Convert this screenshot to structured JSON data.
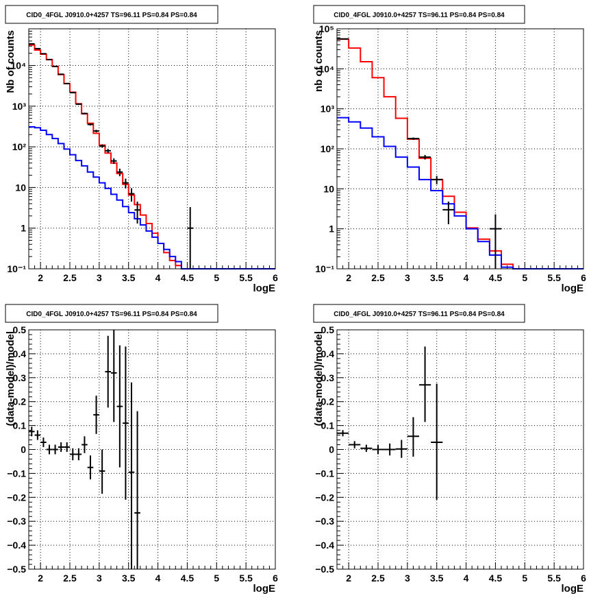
{
  "chart_data": [
    {
      "type": "line",
      "title": "CID0_4FGL J0910.0+4257 TS=96.11 PS=0.84 PS=0.84",
      "xlabel": "logE",
      "ylabel": "Nb of counts",
      "xlim": [
        1.8,
        6.0
      ],
      "ylim": [
        0.1,
        80000
      ],
      "yscale": "log",
      "grid": true,
      "x_ticks": [
        "2",
        "2.5",
        "3",
        "3.5",
        "4",
        "4.5",
        "5",
        "5.5",
        "6"
      ],
      "y_ticks": [
        "10⁻¹",
        "1",
        "10",
        "10²",
        "10³",
        "10⁴"
      ],
      "bin_edges": [
        1.8,
        1.9,
        2.0,
        2.1,
        2.2,
        2.3,
        2.4,
        2.5,
        2.6,
        2.7,
        2.8,
        2.9,
        3.0,
        3.1,
        3.2,
        3.3,
        3.4,
        3.5,
        3.6,
        3.7,
        3.8,
        3.9,
        4.0,
        4.1,
        4.2,
        4.3,
        4.4,
        4.5,
        4.6,
        4.7,
        4.8,
        4.9,
        5.0,
        5.1,
        5.2,
        5.3,
        5.4,
        5.5,
        5.6,
        5.7,
        5.8,
        5.9,
        6.0
      ],
      "series": [
        {
          "color": "#ff0000",
          "values": [
            32000,
            24000,
            19000,
            14000,
            9500,
            6000,
            3600,
            2200,
            1150,
            650,
            380,
            215,
            110,
            70,
            40,
            22,
            12,
            6.5,
            3.8,
            2.1,
            1.3,
            0.75,
            0.42,
            0.25,
            0.16,
            0.12,
            0.1,
            0.1,
            0.1,
            0.1,
            0.1,
            0.1,
            0.1,
            0.1,
            0.1,
            0.1,
            0.1,
            0.1,
            0.1,
            0.1,
            0.1,
            0.1
          ]
        },
        {
          "color": "#0000ff",
          "values": [
            310,
            295,
            255,
            200,
            160,
            120,
            88,
            64,
            46,
            34,
            24,
            18,
            13,
            9.5,
            6.8,
            4.9,
            3.4,
            2.4,
            1.7,
            1.2,
            0.85,
            0.6,
            0.42,
            0.3,
            0.2,
            0.15,
            0.1,
            0.1,
            0.1,
            0.1,
            0.1,
            0.1,
            0.1,
            0.1,
            0.1,
            0.1,
            0.1,
            0.1,
            0.1,
            0.1,
            0.1,
            0.1
          ]
        }
      ],
      "points": [
        {
          "x": 1.85,
          "y": 34000,
          "xerr": 0.05,
          "ylo": 33500,
          "yhi": 34500
        },
        {
          "x": 1.95,
          "y": 26000,
          "xerr": 0.05,
          "ylo": 25600,
          "yhi": 26400
        },
        {
          "x": 2.05,
          "y": 19500,
          "xerr": 0.05,
          "ylo": 19200,
          "yhi": 19800
        },
        {
          "x": 2.15,
          "y": 14000,
          "xerr": 0.05,
          "ylo": 13800,
          "yhi": 14200
        },
        {
          "x": 2.25,
          "y": 9500,
          "xerr": 0.05,
          "ylo": 9300,
          "yhi": 9700
        },
        {
          "x": 2.35,
          "y": 6100,
          "xerr": 0.05,
          "ylo": 5950,
          "yhi": 6250
        },
        {
          "x": 2.45,
          "y": 3600,
          "xerr": 0.05,
          "ylo": 3500,
          "yhi": 3700
        },
        {
          "x": 2.55,
          "y": 2150,
          "xerr": 0.05,
          "ylo": 2080,
          "yhi": 2220
        },
        {
          "x": 2.65,
          "y": 1120,
          "xerr": 0.05,
          "ylo": 1080,
          "yhi": 1160
        },
        {
          "x": 2.75,
          "y": 660,
          "xerr": 0.05,
          "ylo": 630,
          "yhi": 690
        },
        {
          "x": 2.85,
          "y": 355,
          "xerr": 0.05,
          "ylo": 335,
          "yhi": 375
        },
        {
          "x": 2.95,
          "y": 245,
          "xerr": 0.05,
          "ylo": 228,
          "yhi": 262
        },
        {
          "x": 3.05,
          "y": 105,
          "xerr": 0.05,
          "ylo": 95,
          "yhi": 115
        },
        {
          "x": 3.15,
          "y": 80,
          "xerr": 0.05,
          "ylo": 71,
          "yhi": 89
        },
        {
          "x": 3.25,
          "y": 45,
          "xerr": 0.05,
          "ylo": 38,
          "yhi": 52
        },
        {
          "x": 3.35,
          "y": 24,
          "xerr": 0.05,
          "ylo": 19,
          "yhi": 29
        },
        {
          "x": 3.45,
          "y": 13,
          "xerr": 0.05,
          "ylo": 9.5,
          "yhi": 16.5
        },
        {
          "x": 3.55,
          "y": 7,
          "xerr": 0.05,
          "ylo": 4.5,
          "yhi": 9.6
        },
        {
          "x": 3.65,
          "y": 2.8,
          "xerr": 0.05,
          "ylo": 1.3,
          "yhi": 4.5
        },
        {
          "x": 4.55,
          "y": 1.0,
          "xerr": 0.05,
          "ylo": 0.1,
          "yhi": 3.3
        }
      ]
    },
    {
      "type": "line",
      "title": "CID0_4FGL J0910.0+4257 TS=96.11 PS=0.84 PS=0.84",
      "xlabel": "logE",
      "ylabel": "nb of counts",
      "xlim": [
        1.8,
        6.0
      ],
      "ylim": [
        0.1,
        100000
      ],
      "yscale": "log",
      "grid": true,
      "x_ticks": [
        "2",
        "2.5",
        "3",
        "3.5",
        "4",
        "4.5",
        "5",
        "5.5",
        "6"
      ],
      "y_ticks": [
        "10⁻¹",
        "1",
        "10",
        "10²",
        "10³",
        "10⁴",
        "10⁵"
      ],
      "bin_edges": [
        1.8,
        2.0,
        2.2,
        2.4,
        2.6,
        2.8,
        3.0,
        3.2,
        3.4,
        3.6,
        3.8,
        4.0,
        4.2,
        4.4,
        4.6,
        4.8,
        5.0,
        5.2,
        5.4,
        5.6,
        5.8,
        6.0
      ],
      "series": [
        {
          "color": "#ff0000",
          "values": [
            55000,
            33000,
            15000,
            6000,
            2000,
            580,
            175,
            58,
            17,
            6.5,
            2.6,
            1.05,
            0.55,
            0.28,
            0.13,
            0.1,
            0.1,
            0.1,
            0.1,
            0.1,
            0.1
          ]
        },
        {
          "color": "#0000ff",
          "values": [
            600,
            470,
            330,
            200,
            115,
            62,
            35,
            17,
            9,
            4.2,
            2.1,
            1.0,
            0.48,
            0.22,
            0.11,
            0.1,
            0.1,
            0.1,
            0.1,
            0.1,
            0.1
          ]
        }
      ],
      "points": [
        {
          "x": 1.9,
          "y": 56000,
          "xerr": 0.1,
          "ylo": 55500,
          "yhi": 56500
        },
        {
          "x": 3.1,
          "y": 180,
          "xerr": 0.1,
          "ylo": 168,
          "yhi": 192
        },
        {
          "x": 3.3,
          "y": 62,
          "xerr": 0.1,
          "ylo": 54,
          "yhi": 70
        },
        {
          "x": 3.5,
          "y": 17,
          "xerr": 0.1,
          "ylo": 13,
          "yhi": 21
        },
        {
          "x": 3.7,
          "y": 3,
          "xerr": 0.1,
          "ylo": 1.3,
          "yhi": 4.8
        },
        {
          "x": 4.5,
          "y": 1.0,
          "xerr": 0.1,
          "ylo": 0.1,
          "yhi": 2.3
        }
      ]
    },
    {
      "type": "scatter",
      "title": "CID0_4FGL J0910.0+4257 TS=96.11 PS=0.84 PS=0.84",
      "xlabel": "logE",
      "ylabel": "(data-model)/model",
      "xlim": [
        1.8,
        6.0
      ],
      "ylim": [
        -0.5,
        0.5
      ],
      "yscale": "linear",
      "grid": true,
      "x_ticks": [
        "2",
        "2.5",
        "3",
        "3.5",
        "4",
        "4.5",
        "5",
        "5.5",
        "6"
      ],
      "y_ticks": [
        "−0.5",
        "−0.4",
        "−0.3",
        "−0.2",
        "−0.1",
        "0",
        "0.1",
        "0.2",
        "0.3",
        "0.4",
        "0.5"
      ],
      "points": [
        {
          "x": 1.85,
          "y": 0.075,
          "xerr": 0.05,
          "ylo": 0.055,
          "yhi": 0.095
        },
        {
          "x": 1.95,
          "y": 0.06,
          "xerr": 0.05,
          "ylo": 0.04,
          "yhi": 0.08
        },
        {
          "x": 2.05,
          "y": 0.03,
          "xerr": 0.05,
          "ylo": 0.01,
          "yhi": 0.05
        },
        {
          "x": 2.15,
          "y": 0.0,
          "xerr": 0.05,
          "ylo": -0.02,
          "yhi": 0.02
        },
        {
          "x": 2.25,
          "y": 0.0,
          "xerr": 0.05,
          "ylo": -0.02,
          "yhi": 0.02
        },
        {
          "x": 2.35,
          "y": 0.01,
          "xerr": 0.05,
          "ylo": -0.01,
          "yhi": 0.03
        },
        {
          "x": 2.45,
          "y": 0.01,
          "xerr": 0.05,
          "ylo": -0.01,
          "yhi": 0.03
        },
        {
          "x": 2.55,
          "y": -0.02,
          "xerr": 0.05,
          "ylo": -0.045,
          "yhi": 0.005
        },
        {
          "x": 2.65,
          "y": -0.02,
          "xerr": 0.05,
          "ylo": -0.045,
          "yhi": 0.005
        },
        {
          "x": 2.75,
          "y": 0.02,
          "xerr": 0.05,
          "ylo": -0.015,
          "yhi": 0.055
        },
        {
          "x": 2.85,
          "y": -0.075,
          "xerr": 0.05,
          "ylo": -0.125,
          "yhi": -0.025
        },
        {
          "x": 2.95,
          "y": 0.145,
          "xerr": 0.05,
          "ylo": 0.065,
          "yhi": 0.225
        },
        {
          "x": 3.05,
          "y": -0.09,
          "xerr": 0.05,
          "ylo": -0.185,
          "yhi": 0.0
        },
        {
          "x": 3.15,
          "y": 0.325,
          "xerr": 0.05,
          "ylo": 0.175,
          "yhi": 0.475
        },
        {
          "x": 3.25,
          "y": 0.32,
          "xerr": 0.05,
          "ylo": 0.115,
          "yhi": 0.5
        },
        {
          "x": 3.35,
          "y": 0.18,
          "xerr": 0.05,
          "ylo": -0.075,
          "yhi": 0.435
        },
        {
          "x": 3.45,
          "y": 0.11,
          "xerr": 0.05,
          "ylo": -0.21,
          "yhi": 0.43
        },
        {
          "x": 3.55,
          "y": -0.095,
          "xerr": 0.05,
          "ylo": -0.5,
          "yhi": 0.28
        },
        {
          "x": 3.65,
          "y": -0.265,
          "xerr": 0.05,
          "ylo": -0.5,
          "yhi": 0.16
        }
      ]
    },
    {
      "type": "scatter",
      "title": "CID0_4FGL J0910.0+4257 TS=96.11 PS=0.84 PS=0.84",
      "xlabel": "logE",
      "ylabel": "(data-model)/model",
      "xlim": [
        1.8,
        6.0
      ],
      "ylim": [
        -0.5,
        0.5
      ],
      "yscale": "linear",
      "grid": true,
      "x_ticks": [
        "2",
        "2.5",
        "3",
        "3.5",
        "4",
        "4.5",
        "5",
        "5.5",
        "6"
      ],
      "y_ticks": [
        "−0.5",
        "−0.4",
        "−0.3",
        "−0.2",
        "−0.1",
        "0",
        "0.1",
        "0.2",
        "0.3",
        "0.4",
        "0.5"
      ],
      "points": [
        {
          "x": 1.9,
          "y": 0.068,
          "xerr": 0.1,
          "ylo": 0.055,
          "yhi": 0.081
        },
        {
          "x": 2.1,
          "y": 0.02,
          "xerr": 0.1,
          "ylo": 0.005,
          "yhi": 0.035
        },
        {
          "x": 2.3,
          "y": 0.005,
          "xerr": 0.1,
          "ylo": -0.01,
          "yhi": 0.02
        },
        {
          "x": 2.5,
          "y": 0.0,
          "xerr": 0.1,
          "ylo": -0.02,
          "yhi": 0.02
        },
        {
          "x": 2.7,
          "y": 0.0,
          "xerr": 0.1,
          "ylo": -0.025,
          "yhi": 0.025
        },
        {
          "x": 2.9,
          "y": 0.002,
          "xerr": 0.1,
          "ylo": -0.035,
          "yhi": 0.04
        },
        {
          "x": 3.1,
          "y": 0.055,
          "xerr": 0.1,
          "ylo": -0.03,
          "yhi": 0.135
        },
        {
          "x": 3.3,
          "y": 0.27,
          "xerr": 0.1,
          "ylo": 0.115,
          "yhi": 0.43
        },
        {
          "x": 3.5,
          "y": 0.03,
          "xerr": 0.1,
          "ylo": -0.21,
          "yhi": 0.275
        }
      ]
    }
  ]
}
